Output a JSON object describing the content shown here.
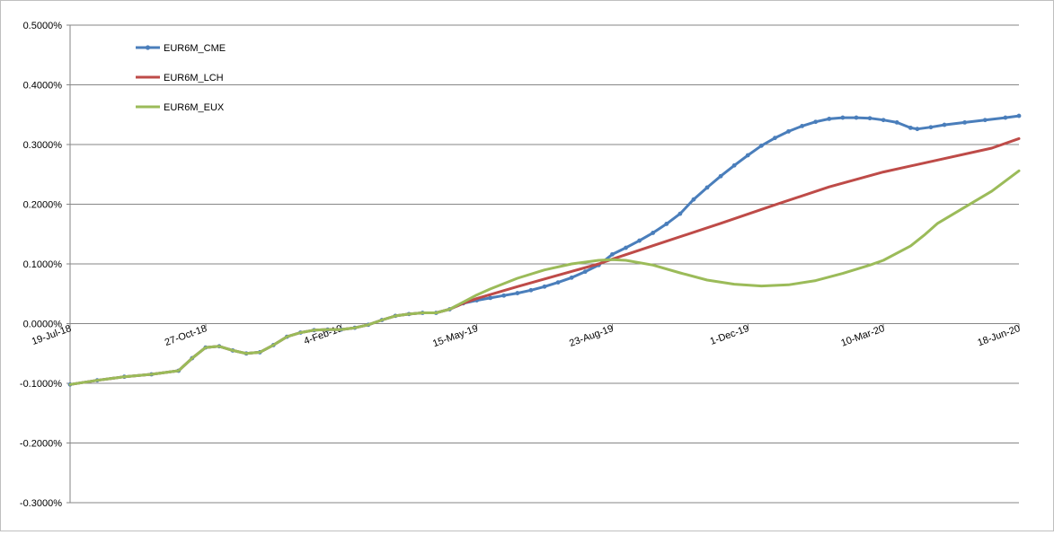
{
  "chart_data": {
    "type": "line",
    "title": "",
    "xlabel": "",
    "ylabel": "",
    "ylim": [
      -0.003,
      0.005
    ],
    "y_ticks": [
      -0.003,
      -0.002,
      -0.001,
      0.0,
      0.001,
      0.002,
      0.003,
      0.004,
      0.005
    ],
    "y_tick_labels": [
      "-0.3000%",
      "-0.2000%",
      "-0.1000%",
      "0.0000%",
      "0.1000%",
      "0.2000%",
      "0.3000%",
      "0.4000%",
      "0.5000%"
    ],
    "xlim": [
      "2018-07-19",
      "2020-06-18"
    ],
    "x_ticks": [
      "2018-07-19",
      "2018-10-27",
      "2019-02-04",
      "2019-05-15",
      "2019-08-23",
      "2019-12-01",
      "2020-03-10",
      "2020-06-18"
    ],
    "x_tick_labels": [
      "19-Jul-18",
      "27-Oct-18",
      "4-Feb-19",
      "15-May-19",
      "23-Aug-19",
      "1-Dec-19",
      "10-Mar-20",
      "18-Jun-20"
    ],
    "grid": "horizontal",
    "legend_position": "top-left",
    "series": [
      {
        "name": "EUR6M_CME",
        "color": "#4a7ebb",
        "marker": "dot",
        "points": [
          [
            "2018-07-19",
            -0.00102
          ],
          [
            "2018-08-08",
            -0.00095
          ],
          [
            "2018-08-28",
            -0.00089
          ],
          [
            "2018-09-17",
            -0.00085
          ],
          [
            "2018-10-07",
            -0.00079
          ],
          [
            "2018-10-17",
            -0.00058
          ],
          [
            "2018-10-27",
            -0.0004
          ],
          [
            "2018-11-06",
            -0.00038
          ],
          [
            "2018-11-16",
            -0.00045
          ],
          [
            "2018-11-26",
            -0.0005
          ],
          [
            "2018-12-06",
            -0.00048
          ],
          [
            "2018-12-16",
            -0.00036
          ],
          [
            "2018-12-26",
            -0.00022
          ],
          [
            "2019-01-05",
            -0.00015
          ],
          [
            "2019-01-15",
            -0.00011
          ],
          [
            "2019-01-25",
            -0.0001
          ],
          [
            "2019-02-04",
            -0.0001
          ],
          [
            "2019-02-14",
            -7e-05
          ],
          [
            "2019-02-24",
            -2e-05
          ],
          [
            "2019-03-06",
            6e-05
          ],
          [
            "2019-03-16",
            0.00013
          ],
          [
            "2019-03-26",
            0.00016
          ],
          [
            "2019-04-05",
            0.00018
          ],
          [
            "2019-04-15",
            0.00018
          ],
          [
            "2019-04-25",
            0.00024
          ],
          [
            "2019-05-05",
            0.00034
          ],
          [
            "2019-05-15",
            0.00039
          ],
          [
            "2019-05-25",
            0.00043
          ],
          [
            "2019-06-04",
            0.00047
          ],
          [
            "2019-06-14",
            0.00051
          ],
          [
            "2019-06-24",
            0.00056
          ],
          [
            "2019-07-04",
            0.00062
          ],
          [
            "2019-07-14",
            0.00069
          ],
          [
            "2019-07-24",
            0.00077
          ],
          [
            "2019-08-03",
            0.00087
          ],
          [
            "2019-08-13",
            0.00098
          ],
          [
            "2019-08-23",
            0.00116
          ],
          [
            "2019-09-02",
            0.00127
          ],
          [
            "2019-09-12",
            0.00139
          ],
          [
            "2019-09-22",
            0.00152
          ],
          [
            "2019-10-02",
            0.00167
          ],
          [
            "2019-10-12",
            0.00184
          ],
          [
            "2019-10-22",
            0.00208
          ],
          [
            "2019-11-01",
            0.00228
          ],
          [
            "2019-11-11",
            0.00247
          ],
          [
            "2019-11-21",
            0.00265
          ],
          [
            "2019-12-01",
            0.00282
          ],
          [
            "2019-12-11",
            0.00298
          ],
          [
            "2019-12-21",
            0.00311
          ],
          [
            "2019-12-31",
            0.00322
          ],
          [
            "2020-01-10",
            0.00331
          ],
          [
            "2020-01-20",
            0.00338
          ],
          [
            "2020-01-30",
            0.00343
          ],
          [
            "2020-02-09",
            0.00345
          ],
          [
            "2020-02-19",
            0.00345
          ],
          [
            "2020-02-29",
            0.00344
          ],
          [
            "2020-03-10",
            0.00341
          ],
          [
            "2020-03-20",
            0.00337
          ],
          [
            "2020-03-30",
            0.00328
          ],
          [
            "2020-04-04",
            0.00326
          ],
          [
            "2020-04-14",
            0.00329
          ],
          [
            "2020-04-24",
            0.00333
          ],
          [
            "2020-05-09",
            0.00337
          ],
          [
            "2020-05-24",
            0.00341
          ],
          [
            "2020-06-08",
            0.00345
          ],
          [
            "2020-06-18",
            0.00348
          ]
        ]
      },
      {
        "name": "EUR6M_LCH",
        "color": "#be4b48",
        "marker": "none",
        "points": [
          [
            "2018-07-19",
            -0.00102
          ],
          [
            "2018-08-08",
            -0.00095
          ],
          [
            "2018-08-28",
            -0.00089
          ],
          [
            "2018-09-17",
            -0.00085
          ],
          [
            "2018-10-07",
            -0.00079
          ],
          [
            "2018-10-17",
            -0.00058
          ],
          [
            "2018-10-27",
            -0.0004
          ],
          [
            "2018-11-06",
            -0.00038
          ],
          [
            "2018-11-16",
            -0.00045
          ],
          [
            "2018-11-26",
            -0.0005
          ],
          [
            "2018-12-06",
            -0.00048
          ],
          [
            "2018-12-16",
            -0.00036
          ],
          [
            "2018-12-26",
            -0.00022
          ],
          [
            "2019-01-05",
            -0.00015
          ],
          [
            "2019-01-15",
            -0.00011
          ],
          [
            "2019-01-25",
            -0.0001
          ],
          [
            "2019-02-04",
            -0.0001
          ],
          [
            "2019-02-14",
            -7e-05
          ],
          [
            "2019-02-24",
            -2e-05
          ],
          [
            "2019-03-06",
            6e-05
          ],
          [
            "2019-03-16",
            0.00013
          ],
          [
            "2019-03-26",
            0.00016
          ],
          [
            "2019-04-05",
            0.00018
          ],
          [
            "2019-04-15",
            0.00018
          ],
          [
            "2019-04-25",
            0.00024
          ],
          [
            "2019-05-05",
            0.00034
          ],
          [
            "2019-05-15",
            0.00042
          ],
          [
            "2019-06-14",
            0.00062
          ],
          [
            "2019-07-14",
            0.00081
          ],
          [
            "2019-08-13",
            0.001
          ],
          [
            "2019-08-23",
            0.00108
          ],
          [
            "2019-10-02",
            0.00138
          ],
          [
            "2019-11-11",
            0.00168
          ],
          [
            "2019-12-21",
            0.00199
          ],
          [
            "2020-01-30",
            0.00229
          ],
          [
            "2020-03-10",
            0.00254
          ],
          [
            "2020-04-19",
            0.00274
          ],
          [
            "2020-05-29",
            0.00294
          ],
          [
            "2020-06-18",
            0.0031
          ]
        ]
      },
      {
        "name": "EUR6M_EUX",
        "color": "#9bbb59",
        "marker": "none",
        "points": [
          [
            "2018-07-19",
            -0.00102
          ],
          [
            "2018-08-08",
            -0.00095
          ],
          [
            "2018-08-28",
            -0.00089
          ],
          [
            "2018-09-17",
            -0.00085
          ],
          [
            "2018-10-07",
            -0.00079
          ],
          [
            "2018-10-17",
            -0.00058
          ],
          [
            "2018-10-27",
            -0.0004
          ],
          [
            "2018-11-06",
            -0.00038
          ],
          [
            "2018-11-16",
            -0.00045
          ],
          [
            "2018-11-26",
            -0.0005
          ],
          [
            "2018-12-06",
            -0.00048
          ],
          [
            "2018-12-16",
            -0.00036
          ],
          [
            "2018-12-26",
            -0.00022
          ],
          [
            "2019-01-05",
            -0.00015
          ],
          [
            "2019-01-15",
            -0.00011
          ],
          [
            "2019-01-25",
            -0.0001
          ],
          [
            "2019-02-04",
            -0.0001
          ],
          [
            "2019-02-14",
            -7e-05
          ],
          [
            "2019-02-24",
            -2e-05
          ],
          [
            "2019-03-06",
            6e-05
          ],
          [
            "2019-03-16",
            0.00013
          ],
          [
            "2019-03-26",
            0.00016
          ],
          [
            "2019-04-05",
            0.00018
          ],
          [
            "2019-04-15",
            0.00018
          ],
          [
            "2019-04-25",
            0.00024
          ],
          [
            "2019-05-05",
            0.00036
          ],
          [
            "2019-05-15",
            0.00048
          ],
          [
            "2019-05-25",
            0.00058
          ],
          [
            "2019-06-14",
            0.00076
          ],
          [
            "2019-07-04",
            0.0009
          ],
          [
            "2019-07-24",
            0.001
          ],
          [
            "2019-08-13",
            0.00106
          ],
          [
            "2019-08-23",
            0.00107
          ],
          [
            "2019-09-02",
            0.00106
          ],
          [
            "2019-09-22",
            0.00098
          ],
          [
            "2019-10-12",
            0.00085
          ],
          [
            "2019-11-01",
            0.00073
          ],
          [
            "2019-11-21",
            0.00066
          ],
          [
            "2019-12-11",
            0.00063
          ],
          [
            "2019-12-31",
            0.00065
          ],
          [
            "2020-01-20",
            0.00072
          ],
          [
            "2020-02-09",
            0.00084
          ],
          [
            "2020-02-29",
            0.00098
          ],
          [
            "2020-03-10",
            0.00106
          ],
          [
            "2020-03-30",
            0.0013
          ],
          [
            "2020-04-09",
            0.00148
          ],
          [
            "2020-04-19",
            0.00168
          ],
          [
            "2020-05-09",
            0.00195
          ],
          [
            "2020-05-29",
            0.00222
          ],
          [
            "2020-06-18",
            0.00256
          ]
        ]
      }
    ]
  }
}
